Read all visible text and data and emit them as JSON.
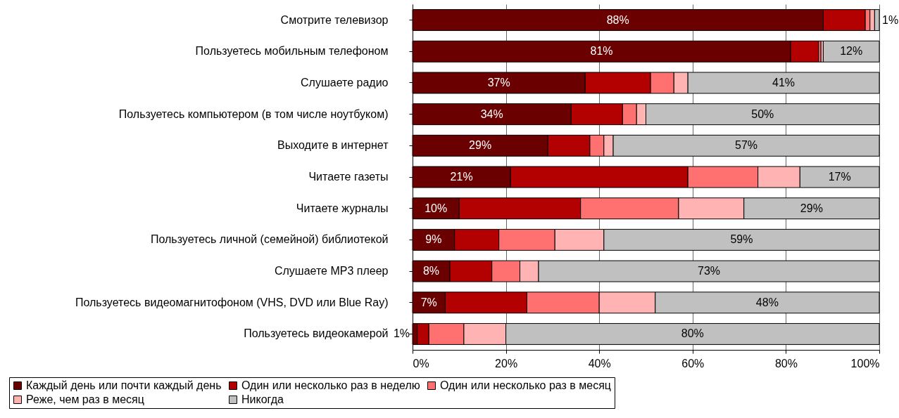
{
  "chart_data": {
    "type": "bar",
    "orientation": "horizontal",
    "stacked": true,
    "grid": "x",
    "legend": "bottom",
    "categories": [
      "Смотрите телевизор",
      "Пользуетесь мобильным телефоном",
      "Слушаете радио",
      "Пользуетесь компьютером (в том числе ноутбуком)",
      "Выходите в интернет",
      "Читаете газеты",
      "Читаете журналы",
      "Пользуетесь личной (семейной) библиотекой",
      "Слушаете MP3 плеер",
      "Пользуетесь видеомагнитофоном (VHS, DVD или Blue Ray)",
      "Пользуетесь видеокамерой"
    ],
    "xlim": [
      0,
      100
    ],
    "xticks": [
      {
        "value": 0,
        "label": "0%"
      },
      {
        "value": 20,
        "label": "20%"
      },
      {
        "value": 40,
        "label": "40%"
      },
      {
        "value": 60,
        "label": "60%"
      },
      {
        "value": 80,
        "label": "80%"
      },
      {
        "value": 100,
        "label": "100%"
      }
    ],
    "series": [
      {
        "name": "Каждый день или почти каждый день",
        "color": "#6b0000",
        "values": [
          88,
          81,
          37,
          34,
          29,
          21,
          10,
          9,
          8,
          7,
          1
        ],
        "value_labels": [
          "88%",
          "81%",
          "37%",
          "34%",
          "29%",
          "21%",
          "10%",
          "9%",
          "8%",
          "7%",
          "1%"
        ]
      },
      {
        "name": "Один или несколько раз в неделю",
        "color": "#b30000",
        "values": [
          9,
          6,
          14,
          11,
          9,
          38,
          26,
          9.5,
          9,
          17.5,
          2.5
        ]
      },
      {
        "name": "Один или несколько раз в месяц",
        "color": "#ff7070",
        "values": [
          1,
          0.5,
          5,
          3,
          3,
          15,
          21,
          12,
          6,
          15.5,
          7.5
        ]
      },
      {
        "name": "Реже, чем раз в месяц",
        "color": "#ffb3b3",
        "values": [
          1,
          0.5,
          3,
          2,
          2,
          9,
          14,
          10.5,
          4,
          12,
          9
        ]
      },
      {
        "name": "Никогда",
        "color": "#c0c0c0",
        "values": [
          1,
          12,
          41,
          50,
          57,
          17,
          29,
          59,
          73,
          48,
          80
        ],
        "value_labels": [
          "1%",
          "12%",
          "41%",
          "50%",
          "57%",
          "17%",
          "29%",
          "59%",
          "73%",
          "48%",
          "80%"
        ]
      }
    ]
  }
}
